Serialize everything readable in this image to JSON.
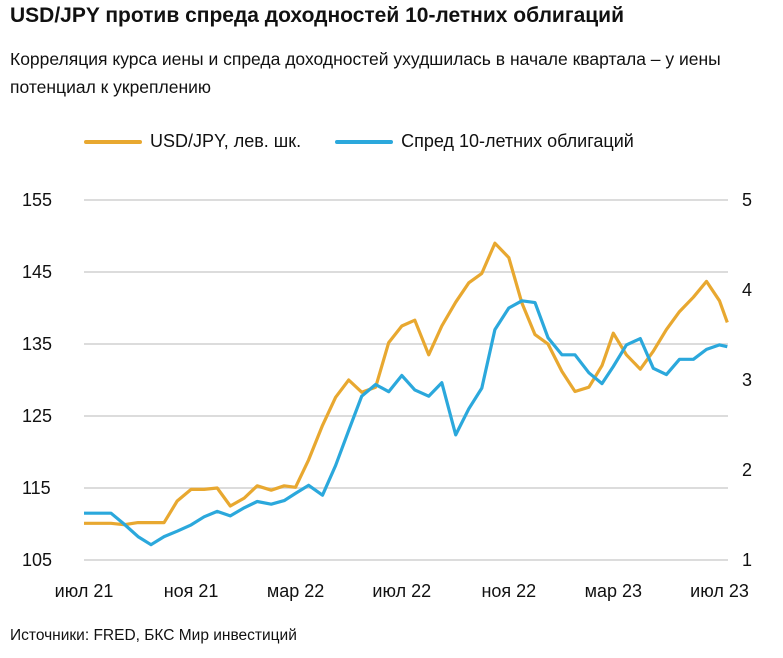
{
  "title": "USD/JPY против спреда доходностей 10-летних облигаций",
  "subtitle": "Корреляция курса иены и спреда доходностей ухудшилась в начале квартала – у иены потенциал к укреплению",
  "source": "Источники: FRED, БКС Мир инвестиций",
  "chart_data": {
    "type": "line",
    "title": "USD/JPY против спреда доходностей 10-летних облигаций",
    "grid": true,
    "legend_placement": "top",
    "x_ticks": [
      "июл 21",
      "ноя 21",
      "мар 22",
      "июл 22",
      "ноя 22",
      "мар 23",
      "июл 23"
    ],
    "y_left": {
      "ticks": [
        105,
        115,
        125,
        135,
        145,
        155
      ],
      "range": [
        105,
        155
      ]
    },
    "y_right": {
      "ticks": [
        1,
        2,
        3,
        4,
        5
      ],
      "range": [
        1,
        5
      ]
    },
    "x": [
      "2021-07-01",
      "2021-07-16",
      "2021-08-01",
      "2021-08-16",
      "2021-09-01",
      "2021-09-16",
      "2021-10-01",
      "2021-10-16",
      "2021-11-01",
      "2021-11-16",
      "2021-12-01",
      "2021-12-16",
      "2022-01-01",
      "2022-01-16",
      "2022-02-01",
      "2022-02-16",
      "2022-03-01",
      "2022-03-16",
      "2022-04-01",
      "2022-04-16",
      "2022-05-01",
      "2022-05-16",
      "2022-06-01",
      "2022-06-16",
      "2022-07-01",
      "2022-07-16",
      "2022-08-01",
      "2022-08-16",
      "2022-09-01",
      "2022-09-16",
      "2022-10-01",
      "2022-10-16",
      "2022-11-01",
      "2022-11-16",
      "2022-12-01",
      "2022-12-16",
      "2023-01-01",
      "2023-01-16",
      "2023-02-01",
      "2023-02-16",
      "2023-03-01",
      "2023-03-16",
      "2023-04-01",
      "2023-04-16",
      "2023-05-01",
      "2023-05-16",
      "2023-06-01",
      "2023-06-16",
      "2023-07-01",
      "2023-07-10"
    ],
    "series": [
      {
        "name": "USD/JPY, лев. шк.",
        "axis": "left",
        "color": "#E8A830",
        "values": [
          110.1,
          110.1,
          110.1,
          109.9,
          110.2,
          110.2,
          110.2,
          113.2,
          114.8,
          114.8,
          115.0,
          112.5,
          113.6,
          115.3,
          114.7,
          115.3,
          115.1,
          118.9,
          123.7,
          127.6,
          130.0,
          128.3,
          129.0,
          135.2,
          137.5,
          138.3,
          133.5,
          137.5,
          140.8,
          143.5,
          144.8,
          149.0,
          147.0,
          140.7,
          136.3,
          135.0,
          131.2,
          128.4,
          129.0,
          132.0,
          136.5,
          133.5,
          131.5,
          134.0,
          137.0,
          139.5,
          141.5,
          143.7,
          141.0,
          138.0
        ]
      },
      {
        "name": "Спред 10-летних облигаций",
        "axis": "right",
        "color": "#2BA8DC",
        "values": [
          1.52,
          1.52,
          1.52,
          1.4,
          1.26,
          1.17,
          1.26,
          1.32,
          1.39,
          1.48,
          1.54,
          1.49,
          1.58,
          1.65,
          1.62,
          1.66,
          1.74,
          1.83,
          1.72,
          2.05,
          2.44,
          2.82,
          2.95,
          2.87,
          3.05,
          2.89,
          2.82,
          2.97,
          2.39,
          2.68,
          2.91,
          3.56,
          3.8,
          3.88,
          3.86,
          3.47,
          3.28,
          3.28,
          3.08,
          2.96,
          3.15,
          3.39,
          3.46,
          3.13,
          3.06,
          3.23,
          3.23,
          3.34,
          3.39,
          3.37
        ]
      }
    ]
  }
}
